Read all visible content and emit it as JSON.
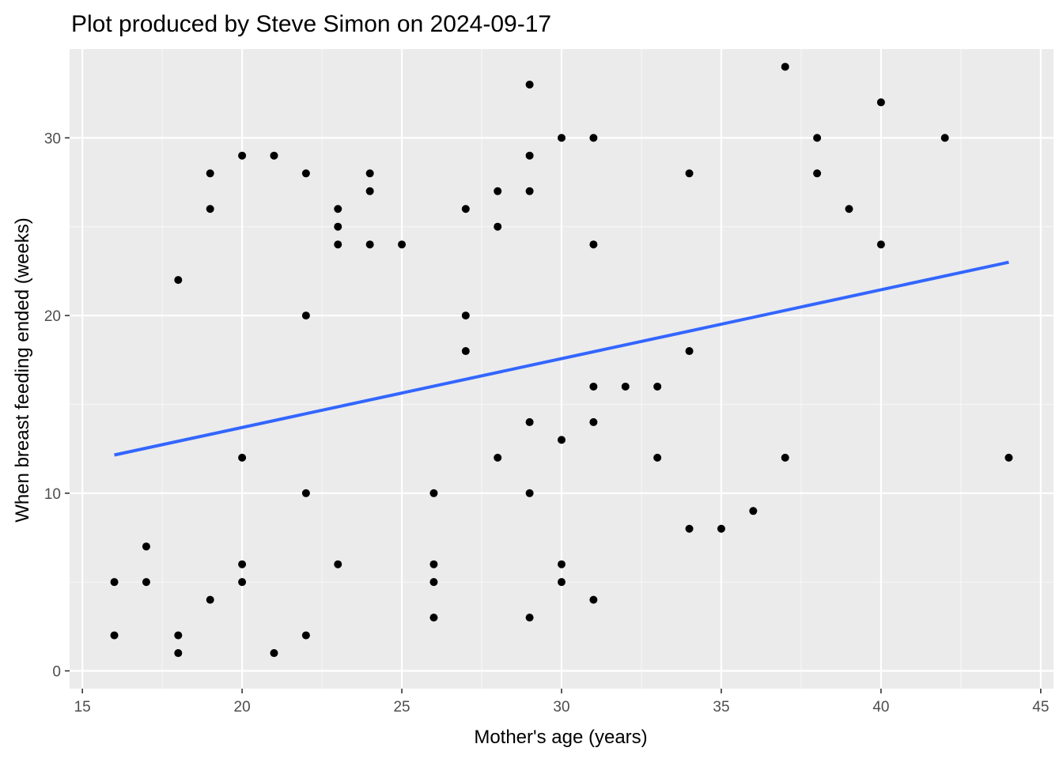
{
  "chart_data": {
    "type": "scatter",
    "title": "Plot produced by Steve Simon on 2024-09-17",
    "xlabel": "Mother's age (years)",
    "ylabel": "When breast feeding ended (weeks)",
    "xlim": [
      14.6,
      45.4
    ],
    "ylim": [
      -1.0,
      35.0
    ],
    "x_ticks": [
      15,
      20,
      25,
      30,
      35,
      40,
      45
    ],
    "x_tick_labels": [
      "15",
      "20",
      "25",
      "30",
      "35",
      "40",
      "45"
    ],
    "y_ticks": [
      0,
      10,
      20,
      30
    ],
    "y_tick_labels": [
      "0",
      "10",
      "20",
      "30"
    ],
    "grid": true,
    "legend": "none",
    "colors": {
      "panel_background": "#ebebeb",
      "grid_major": "#ffffff",
      "point": "#000000",
      "trend_line": "#3366ff",
      "tick_text": "#4d4d4d",
      "tick_mark": "#333333"
    },
    "points": [
      {
        "x": 16,
        "y": 5
      },
      {
        "x": 16,
        "y": 2
      },
      {
        "x": 17,
        "y": 7
      },
      {
        "x": 17,
        "y": 5
      },
      {
        "x": 18,
        "y": 22
      },
      {
        "x": 18,
        "y": 2
      },
      {
        "x": 18,
        "y": 1
      },
      {
        "x": 19,
        "y": 28
      },
      {
        "x": 19,
        "y": 26
      },
      {
        "x": 19,
        "y": 4
      },
      {
        "x": 20,
        "y": 29
      },
      {
        "x": 20,
        "y": 12
      },
      {
        "x": 20,
        "y": 6
      },
      {
        "x": 20,
        "y": 5
      },
      {
        "x": 21,
        "y": 29
      },
      {
        "x": 21,
        "y": 1
      },
      {
        "x": 22,
        "y": 28
      },
      {
        "x": 22,
        "y": 20
      },
      {
        "x": 22,
        "y": 10
      },
      {
        "x": 22,
        "y": 2
      },
      {
        "x": 23,
        "y": 26
      },
      {
        "x": 23,
        "y": 25
      },
      {
        "x": 23,
        "y": 24
      },
      {
        "x": 23,
        "y": 6
      },
      {
        "x": 24,
        "y": 28
      },
      {
        "x": 24,
        "y": 27
      },
      {
        "x": 24,
        "y": 24
      },
      {
        "x": 25,
        "y": 24
      },
      {
        "x": 26,
        "y": 10
      },
      {
        "x": 26,
        "y": 6
      },
      {
        "x": 26,
        "y": 5
      },
      {
        "x": 26,
        "y": 3
      },
      {
        "x": 27,
        "y": 26
      },
      {
        "x": 27,
        "y": 20
      },
      {
        "x": 27,
        "y": 18
      },
      {
        "x": 28,
        "y": 27
      },
      {
        "x": 28,
        "y": 25
      },
      {
        "x": 28,
        "y": 12
      },
      {
        "x": 29,
        "y": 33
      },
      {
        "x": 29,
        "y": 29
      },
      {
        "x": 29,
        "y": 27
      },
      {
        "x": 29,
        "y": 14
      },
      {
        "x": 29,
        "y": 10
      },
      {
        "x": 29,
        "y": 3
      },
      {
        "x": 30,
        "y": 30
      },
      {
        "x": 30,
        "y": 13
      },
      {
        "x": 30,
        "y": 6
      },
      {
        "x": 30,
        "y": 5
      },
      {
        "x": 31,
        "y": 30
      },
      {
        "x": 31,
        "y": 24
      },
      {
        "x": 31,
        "y": 16
      },
      {
        "x": 31,
        "y": 14
      },
      {
        "x": 31,
        "y": 4
      },
      {
        "x": 32,
        "y": 16
      },
      {
        "x": 33,
        "y": 16
      },
      {
        "x": 33,
        "y": 12
      },
      {
        "x": 34,
        "y": 28
      },
      {
        "x": 34,
        "y": 18
      },
      {
        "x": 34,
        "y": 8
      },
      {
        "x": 35,
        "y": 8
      },
      {
        "x": 36,
        "y": 9
      },
      {
        "x": 37,
        "y": 34
      },
      {
        "x": 37,
        "y": 12
      },
      {
        "x": 38,
        "y": 30
      },
      {
        "x": 38,
        "y": 28
      },
      {
        "x": 39,
        "y": 26
      },
      {
        "x": 40,
        "y": 32
      },
      {
        "x": 40,
        "y": 24
      },
      {
        "x": 42,
        "y": 30
      },
      {
        "x": 44,
        "y": 12
      }
    ],
    "trend_line": {
      "method": "linear",
      "x": [
        16,
        44
      ],
      "y": [
        12.15,
        23.0
      ]
    }
  }
}
